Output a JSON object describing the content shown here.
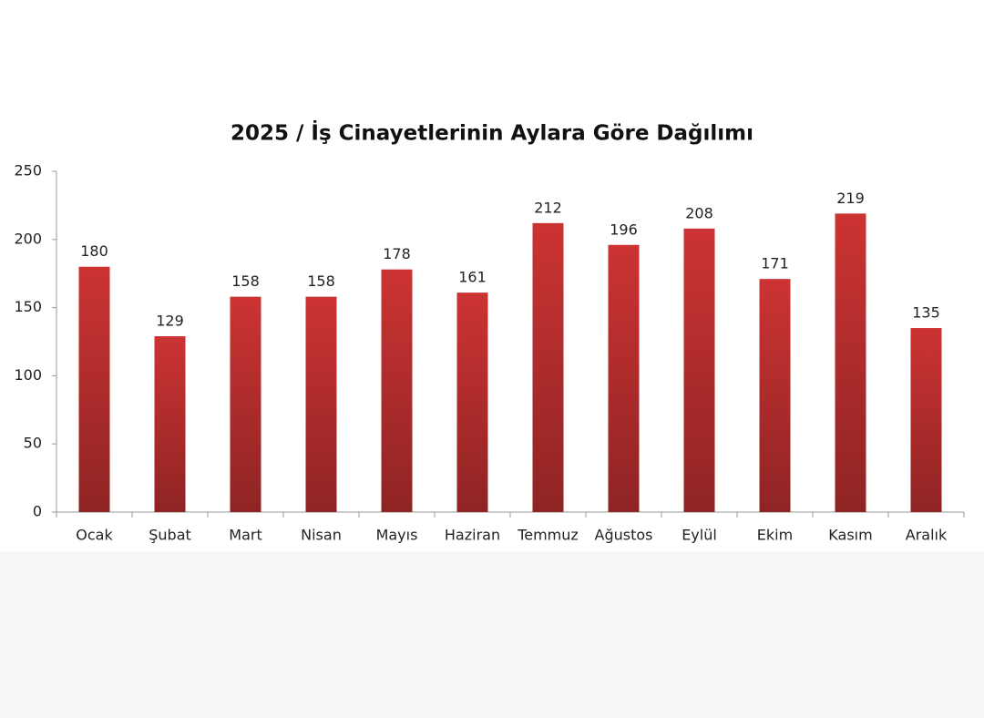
{
  "chart_data": {
    "type": "bar",
    "title": "2025 / İş Cinayetlerinin Aylara Göre Dağılımı",
    "categories": [
      "Ocak",
      "Şubat",
      "Mart",
      "Nisan",
      "Mayıs",
      "Haziran",
      "Temmuz",
      "Ağustos",
      "Eylül",
      "Ekim",
      "Kasım",
      "Aralık"
    ],
    "values": [
      180,
      129,
      158,
      158,
      178,
      161,
      212,
      196,
      208,
      171,
      219,
      135
    ],
    "color": "#cc3333",
    "ylim": [
      0,
      250
    ],
    "yticks": [
      0,
      50,
      100,
      150,
      200,
      250
    ],
    "grid": false
  }
}
